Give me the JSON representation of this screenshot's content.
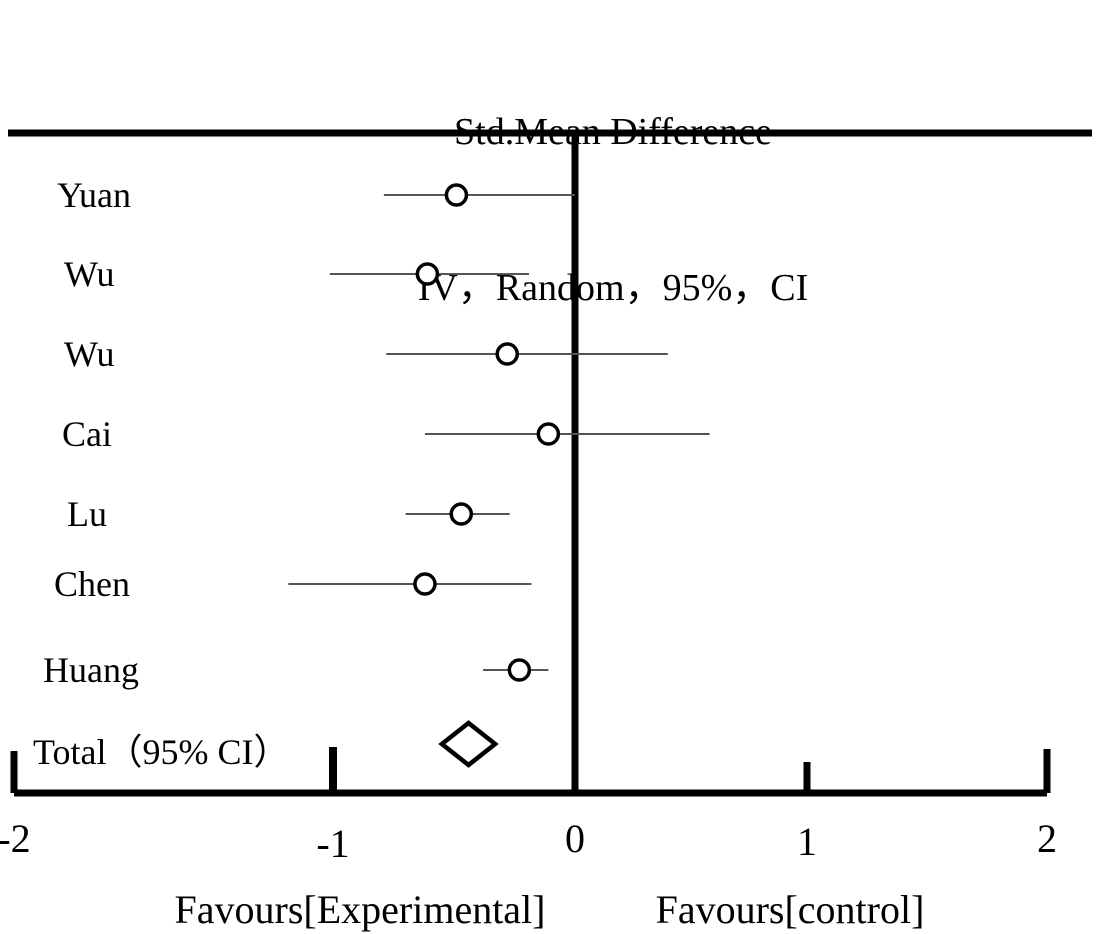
{
  "chart_data": {
    "type": "forest",
    "title_line1": "Std.Mean Difference",
    "title_line2": "IV，Random，95%，CI",
    "xlabel": "",
    "ylabel": "",
    "xlim": [
      -2,
      2
    ],
    "x_ticks": [
      -2,
      -1,
      0,
      1,
      2
    ],
    "zero_line": 0,
    "grid": false,
    "studies": [
      {
        "label": "Yuan",
        "smd": -0.49,
        "ci_low": -0.79,
        "ci_high": 0.0
      },
      {
        "label": "Wu",
        "smd": -0.61,
        "ci_low": -1.01,
        "ci_high": -0.19
      },
      {
        "label": "Wu",
        "smd": -0.28,
        "ci_low": -0.78,
        "ci_high": 0.4
      },
      {
        "label": "Cai",
        "smd": -0.11,
        "ci_low": -0.62,
        "ci_high": 0.58
      },
      {
        "label": "Lu",
        "smd": -0.47,
        "ci_low": -0.7,
        "ci_high": -0.27
      },
      {
        "label": "Chen",
        "smd": -0.62,
        "ci_low": -1.14,
        "ci_high": -0.18
      },
      {
        "label": "Huang",
        "smd": -0.23,
        "ci_low": -0.38,
        "ci_high": -0.11
      }
    ],
    "total": {
      "label": "Total（95% CI）",
      "smd": -0.44,
      "ci_low": -0.55,
      "ci_high": -0.33
    },
    "footer": {
      "left": "Favours[Experimental]",
      "right": "Favours[control]"
    },
    "colors": {
      "ink": "#000000",
      "ci_line": "#555555",
      "marker_fill": "#ffffff",
      "background": "#ffffff"
    }
  }
}
